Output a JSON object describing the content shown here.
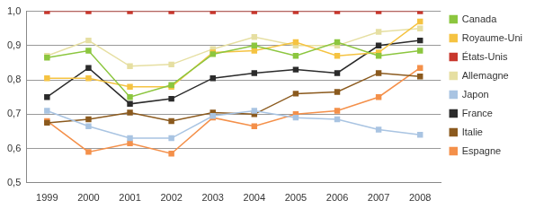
{
  "chart_data": {
    "type": "line",
    "categories": [
      "1999",
      "2000",
      "2001",
      "2002",
      "2003",
      "2004",
      "2005",
      "2006",
      "2007",
      "2008"
    ],
    "series": [
      {
        "name": "Canada",
        "color": "#8cc63f",
        "values": [
          0.865,
          0.885,
          0.75,
          0.785,
          0.875,
          0.9,
          0.87,
          0.91,
          0.87,
          0.885
        ]
      },
      {
        "name": "Royaume-Uni",
        "color": "#f5c342",
        "values": [
          0.805,
          0.805,
          0.78,
          0.78,
          0.88,
          0.885,
          0.91,
          0.87,
          0.88,
          0.97
        ]
      },
      {
        "name": "États-Unis",
        "color": "#c8372d",
        "values": [
          1.0,
          1.0,
          1.0,
          1.0,
          1.0,
          1.0,
          1.0,
          1.0,
          1.0,
          1.0
        ]
      },
      {
        "name": "Allemagne",
        "color": "#e6dfa2",
        "values": [
          0.87,
          0.915,
          0.84,
          0.845,
          0.89,
          0.925,
          0.9,
          0.9,
          0.94,
          0.95
        ]
      },
      {
        "name": "Japon",
        "color": "#a9c4e2",
        "values": [
          0.71,
          0.665,
          0.63,
          0.63,
          0.695,
          0.71,
          0.69,
          0.685,
          0.655,
          0.64
        ]
      },
      {
        "name": "France",
        "color": "#2b2b2b",
        "values": [
          0.75,
          0.835,
          0.73,
          0.745,
          0.805,
          0.82,
          0.83,
          0.82,
          0.9,
          0.915
        ]
      },
      {
        "name": "Italie",
        "color": "#8b5a1e",
        "values": [
          0.675,
          0.685,
          0.705,
          0.68,
          0.705,
          0.7,
          0.76,
          0.765,
          0.82,
          0.81
        ]
      },
      {
        "name": "Espagne",
        "color": "#f4904a",
        "values": [
          0.68,
          0.59,
          0.615,
          0.585,
          0.69,
          0.665,
          0.7,
          0.71,
          0.75,
          0.835
        ]
      }
    ],
    "ylim": [
      0.5,
      1.0
    ],
    "yticks": [
      {
        "value": 0.5,
        "label": "0,5"
      },
      {
        "value": 0.6,
        "label": "0,6"
      },
      {
        "value": 0.7,
        "label": "0,7"
      },
      {
        "value": 0.8,
        "label": "0,8"
      },
      {
        "value": 0.9,
        "label": "0,9"
      },
      {
        "value": 1.0,
        "label": "1,0"
      }
    ],
    "grid": true,
    "legend": "right",
    "marker": "square"
  }
}
